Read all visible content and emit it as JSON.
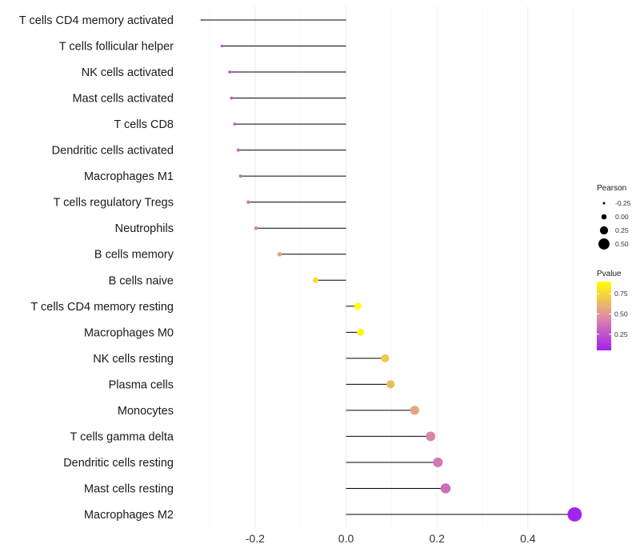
{
  "chart_data": {
    "type": "lollipop",
    "title": "",
    "xlabel": "",
    "ylabel": "",
    "xlim": [
      -0.36,
      0.52
    ],
    "xticks": [
      -0.2,
      0.0,
      0.2,
      0.4
    ],
    "xtick_labels": [
      "-0.2",
      "0.0",
      "0.2",
      "0.4"
    ],
    "baseline": 0,
    "grid": true,
    "categories": [
      "T cells CD4 memory activated",
      "T cells follicular helper",
      "NK cells activated",
      "Mast cells activated",
      "T cells CD8",
      "Dendritic cells activated",
      "Macrophages M1",
      "T cells regulatory  Tregs",
      "Neutrophils",
      "B cells memory",
      "B cells naive",
      "T cells CD4 memory resting",
      "Macrophages M0",
      "NK cells resting",
      "Plasma cells",
      "Monocytes",
      "T cells gamma delta",
      "Dendritic cells resting",
      "Mast cells resting",
      "Macrophages M2"
    ],
    "pearson": [
      -0.318,
      -0.273,
      -0.256,
      -0.252,
      -0.245,
      -0.237,
      -0.232,
      -0.215,
      -0.198,
      -0.146,
      -0.067,
      0.026,
      0.032,
      0.086,
      0.098,
      0.151,
      0.186,
      0.202,
      0.219,
      0.503
    ],
    "pvalue": [
      0.1,
      0.18,
      0.22,
      0.25,
      0.27,
      0.3,
      0.33,
      0.38,
      0.45,
      0.6,
      0.85,
      1.0,
      0.97,
      0.75,
      0.7,
      0.6,
      0.45,
      0.4,
      0.35,
      0.02
    ],
    "legend_size": {
      "title": "Pearson",
      "values": [
        -0.25,
        0.0,
        0.25,
        0.5
      ],
      "labels": [
        "-0.25",
        "0.00",
        "0.25",
        "0.50"
      ],
      "position": "right"
    },
    "legend_color": {
      "title": "Pvalue",
      "ticks": [
        0.25,
        0.5,
        0.75
      ],
      "labels": [
        "0.25",
        "0.50",
        "0.75"
      ],
      "range": [
        0.05,
        0.9
      ],
      "low_color": "#a020f0",
      "mid_color": "#e08fa0",
      "high_color": "#ffff00",
      "position": "right"
    }
  }
}
